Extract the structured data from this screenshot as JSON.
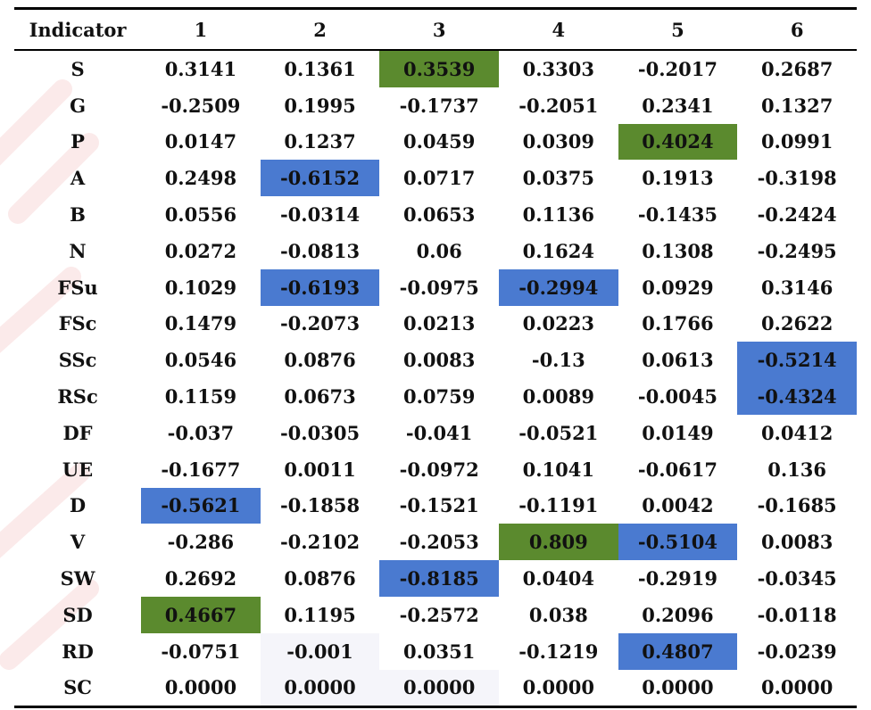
{
  "table": {
    "headers": [
      "Indicator",
      "1",
      "2",
      "3",
      "4",
      "5",
      "6"
    ],
    "rows": [
      {
        "label": "S",
        "values": [
          "0.3141",
          "0.1361",
          "0.3539",
          "0.3303",
          "-0.2017",
          "0.2687"
        ]
      },
      {
        "label": "G",
        "values": [
          "-0.2509",
          "0.1995",
          "-0.1737",
          "-0.2051",
          "0.2341",
          "0.1327"
        ]
      },
      {
        "label": "P",
        "values": [
          "0.0147",
          "0.1237",
          "0.0459",
          "0.0309",
          "0.4024",
          "0.0991"
        ]
      },
      {
        "label": "A",
        "values": [
          "0.2498",
          "-0.6152",
          "0.0717",
          "0.0375",
          "0.1913",
          "-0.3198"
        ]
      },
      {
        "label": "B",
        "values": [
          "0.0556",
          "-0.0314",
          "0.0653",
          "0.1136",
          "-0.1435",
          "-0.2424"
        ]
      },
      {
        "label": "N",
        "values": [
          "0.0272",
          "-0.0813",
          "0.06",
          "0.1624",
          "0.1308",
          "-0.2495"
        ]
      },
      {
        "label": "FSu",
        "values": [
          "0.1029",
          "-0.6193",
          "-0.0975",
          "-0.2994",
          "0.0929",
          "0.3146"
        ]
      },
      {
        "label": "FSc",
        "values": [
          "0.1479",
          "-0.2073",
          "0.0213",
          "0.0223",
          "0.1766",
          "0.2622"
        ]
      },
      {
        "label": "SSc",
        "values": [
          "0.0546",
          "0.0876",
          "0.0083",
          "-0.13",
          "0.0613",
          "-0.5214"
        ]
      },
      {
        "label": "RSc",
        "values": [
          "0.1159",
          "0.0673",
          "0.0759",
          "0.0089",
          "-0.0045",
          "-0.4324"
        ]
      },
      {
        "label": "DF",
        "values": [
          "-0.037",
          "-0.0305",
          "-0.041",
          "-0.0521",
          "0.0149",
          "0.0412"
        ]
      },
      {
        "label": "UE",
        "values": [
          "-0.1677",
          "0.0011",
          "-0.0972",
          "0.1041",
          "-0.0617",
          "0.136"
        ]
      },
      {
        "label": "D",
        "values": [
          "-0.5621",
          "-0.1858",
          "-0.1521",
          "-0.1191",
          "0.0042",
          "-0.1685"
        ]
      },
      {
        "label": "V",
        "values": [
          "-0.286",
          "-0.2102",
          "-0.2053",
          "0.809",
          "-0.5104",
          "0.0083"
        ]
      },
      {
        "label": "SW",
        "values": [
          "0.2692",
          "0.0876",
          "-0.8185",
          "0.0404",
          "-0.2919",
          "-0.0345"
        ]
      },
      {
        "label": "SD",
        "values": [
          "0.4667",
          "0.1195",
          "-0.2572",
          "0.038",
          "0.2096",
          "-0.0118"
        ]
      },
      {
        "label": "RD",
        "values": [
          "-0.0751",
          "-0.001",
          "0.0351",
          "-0.1219",
          "0.4807",
          "-0.0239"
        ]
      },
      {
        "label": "SC",
        "values": [
          "0.0000",
          "0.0000",
          "0.0000",
          "0.0000",
          "0.0000",
          "0.0000"
        ]
      }
    ]
  },
  "colors": {
    "positive_highlight": "#5b8a2e",
    "negative_highlight": "#4a7ad0"
  }
}
